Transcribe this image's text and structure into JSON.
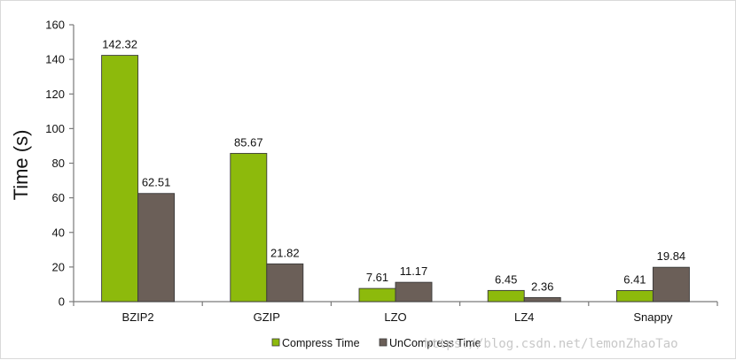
{
  "chart_data": {
    "type": "bar",
    "title": "",
    "xlabel": "",
    "ylabel": "Time (s)",
    "ylim": [
      0,
      160
    ],
    "yticks": [
      0,
      20,
      40,
      60,
      80,
      100,
      120,
      140,
      160
    ],
    "categories": [
      "BZIP2",
      "GZIP",
      "LZO",
      "LZ4",
      "Snappy"
    ],
    "series": [
      {
        "name": "Compress Time",
        "color": "#8dba0c",
        "values": [
          142.32,
          85.67,
          7.61,
          6.45,
          6.41
        ],
        "labels": [
          "142.32",
          "85.67",
          "7.61",
          "6.45",
          "6.41"
        ]
      },
      {
        "name": "UnCompress Time",
        "color": "#6b5f58",
        "values": [
          62.51,
          21.82,
          11.17,
          2.36,
          19.84
        ],
        "labels": [
          "62.51",
          "21.82",
          "11.17",
          "2.36",
          "19.84"
        ]
      }
    ],
    "legend_position": "bottom-center",
    "grid": false
  },
  "watermark": "https://blog.csdn.net/lemonZhaoTao"
}
